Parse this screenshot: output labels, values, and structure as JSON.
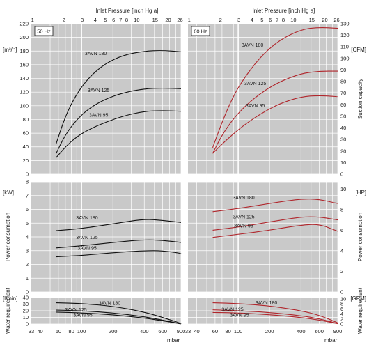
{
  "chart_data": {
    "type": "line",
    "x_scale": "log",
    "x_unit": "mbar",
    "top_axis_title": "Inlet Pressure [inch Hg a]",
    "top_ticks": [
      "1",
      "2",
      "3",
      "4",
      "5",
      "6",
      "7",
      "8",
      "10",
      "15",
      "20",
      "26"
    ],
    "bottom_ticks": [
      "33",
      "40",
      "60",
      "80",
      "100",
      "200",
      "400",
      "600",
      "900"
    ],
    "bottom_unit_label": "mbar",
    "frequencies": [
      {
        "id": "50hz",
        "label": "50 Hz",
        "color": "#111111"
      },
      {
        "id": "60hz",
        "label": "60 Hz",
        "color": "#b0262c"
      }
    ],
    "panels": [
      {
        "id": "suction",
        "left_unit": "[m³/h]",
        "right_unit": "[CFM]",
        "right_title": "Suction capacity",
        "left_ylim": [
          0,
          220
        ],
        "left_ticks": [
          "0",
          "20",
          "40",
          "60",
          "80",
          "100",
          "120",
          "140",
          "160",
          "180",
          "200",
          "220"
        ],
        "right_ylim": [
          0,
          130
        ],
        "right_ticks": [
          "0",
          "10",
          "20",
          "30",
          "40",
          "50",
          "60",
          "70",
          "80",
          "90",
          "100",
          "110",
          "120",
          "130"
        ],
        "series": {
          "50hz": [
            {
              "name": "3AVN 180",
              "x": [
                57,
                70,
                90,
                120,
                170,
                250,
                400,
                600,
                900
              ],
              "y": [
                44,
                85,
                118,
                143,
                162,
                174,
                180,
                181,
                179
              ]
            },
            {
              "name": "3AVN 125",
              "x": [
                57,
                70,
                90,
                120,
                170,
                250,
                400,
                600,
                900
              ],
              "y": [
                30,
                58,
                80,
                97,
                110,
                119,
                125,
                126,
                125
              ]
            },
            {
              "name": "3AVN 95",
              "x": [
                57,
                70,
                90,
                120,
                170,
                250,
                400,
                600,
                900
              ],
              "y": [
                24,
                40,
                55,
                66,
                76,
                85,
                92,
                93,
                92
              ]
            }
          ],
          "60hz": [
            {
              "name": "3AVN 180",
              "x": [
                57,
                70,
                90,
                120,
                170,
                250,
                400,
                600,
                900
              ],
              "y": [
                23,
                45,
                68,
                86,
                103,
                116,
                125,
                127,
                126
              ]
            },
            {
              "name": "3AVN 125",
              "x": [
                57,
                70,
                90,
                120,
                170,
                250,
                400,
                600,
                900
              ],
              "y": [
                18,
                34,
                48,
                60,
                71,
                80,
                87,
                89,
                89
              ]
            },
            {
              "name": "3AVN 95",
              "x": [
                57,
                70,
                90,
                120,
                170,
                250,
                400,
                600,
                900
              ],
              "y": [
                18,
                26,
                35,
                44,
                53,
                61,
                67,
                68,
                67
              ]
            }
          ]
        }
      },
      {
        "id": "power",
        "left_unit": "[kW]",
        "right_unit": "[HP]",
        "left_title": "Power consumption",
        "right_title": "Power consumption",
        "left_ylim": [
          0,
          8
        ],
        "left_ticks": [
          "0",
          "1",
          "2",
          "3",
          "4",
          "5",
          "6",
          "7",
          "8"
        ],
        "right_ylim": [
          0,
          10.7
        ],
        "right_ticks": [
          "0",
          "2",
          "4",
          "6",
          "8",
          "10"
        ],
        "series": {
          "50hz": [
            {
              "name": "3AVN 180",
              "x": [
                57,
                100,
                200,
                400,
                600,
                900
              ],
              "y": [
                4.45,
                4.6,
                4.95,
                5.3,
                5.2,
                5.05
              ]
            },
            {
              "name": "3AVN 125",
              "x": [
                57,
                100,
                200,
                400,
                600,
                900
              ],
              "y": [
                3.2,
                3.35,
                3.6,
                3.8,
                3.75,
                3.6
              ]
            },
            {
              "name": "3AVN 95",
              "x": [
                57,
                100,
                200,
                400,
                600,
                900
              ],
              "y": [
                2.55,
                2.65,
                2.85,
                3.0,
                3.0,
                2.8
              ]
            }
          ],
          "60hz": [
            {
              "name": "3AVN 180",
              "x": [
                57,
                100,
                200,
                400,
                600,
                900
              ],
              "y": [
                7.8,
                8.1,
                8.6,
                9.05,
                9.0,
                8.6
              ]
            },
            {
              "name": "3AVN 125",
              "x": [
                57,
                100,
                200,
                400,
                600,
                900
              ],
              "y": [
                6.0,
                6.3,
                6.8,
                7.3,
                7.3,
                7.0
              ]
            },
            {
              "name": "3AVN 95",
              "x": [
                57,
                100,
                200,
                400,
                600,
                900
              ],
              "y": [
                5.3,
                5.6,
                6.0,
                6.5,
                6.6,
                5.9
              ]
            }
          ]
        }
      },
      {
        "id": "water",
        "left_unit": "[l/min]",
        "right_unit": "[GPM]",
        "left_title": "Water requirement",
        "right_title": "Water requirement",
        "left_ylim": [
          0,
          40
        ],
        "left_ticks": [
          "0",
          "10",
          "20",
          "30",
          "40"
        ],
        "right_ylim": [
          0,
          10.5
        ],
        "right_ticks": [
          "0",
          "2",
          "4",
          "6",
          "8",
          "10"
        ],
        "series": {
          "50hz": [
            {
              "name": "3AVN 180",
              "x": [
                57,
                100,
                200,
                400,
                600,
                900
              ],
              "y": [
                32,
                31,
                27,
                18,
                10,
                1
              ]
            },
            {
              "name": "3AVN 125",
              "x": [
                57,
                100,
                200,
                400,
                600,
                900
              ],
              "y": [
                21,
                20,
                17,
                11,
                6,
                0
              ]
            },
            {
              "name": "3AVN 95",
              "x": [
                57,
                100,
                200,
                400,
                600,
                900
              ],
              "y": [
                18,
                17,
                14,
                9,
                5,
                0
              ]
            }
          ],
          "60hz": [
            {
              "name": "3AVN 180",
              "x": [
                57,
                100,
                200,
                400,
                600,
                900
              ],
              "y": [
                8.4,
                8.1,
                7.2,
                5.3,
                3.5,
                0.5
              ]
            },
            {
              "name": "3AVN 125",
              "x": [
                57,
                100,
                200,
                400,
                600,
                900
              ],
              "y": [
                5.6,
                5.3,
                4.6,
                3.3,
                2.1,
                0.2
              ]
            },
            {
              "name": "3AVN 95",
              "x": [
                57,
                100,
                200,
                400,
                600,
                900
              ],
              "y": [
                4.6,
                4.4,
                3.7,
                2.6,
                1.6,
                0.1
              ]
            }
          ]
        }
      }
    ]
  }
}
